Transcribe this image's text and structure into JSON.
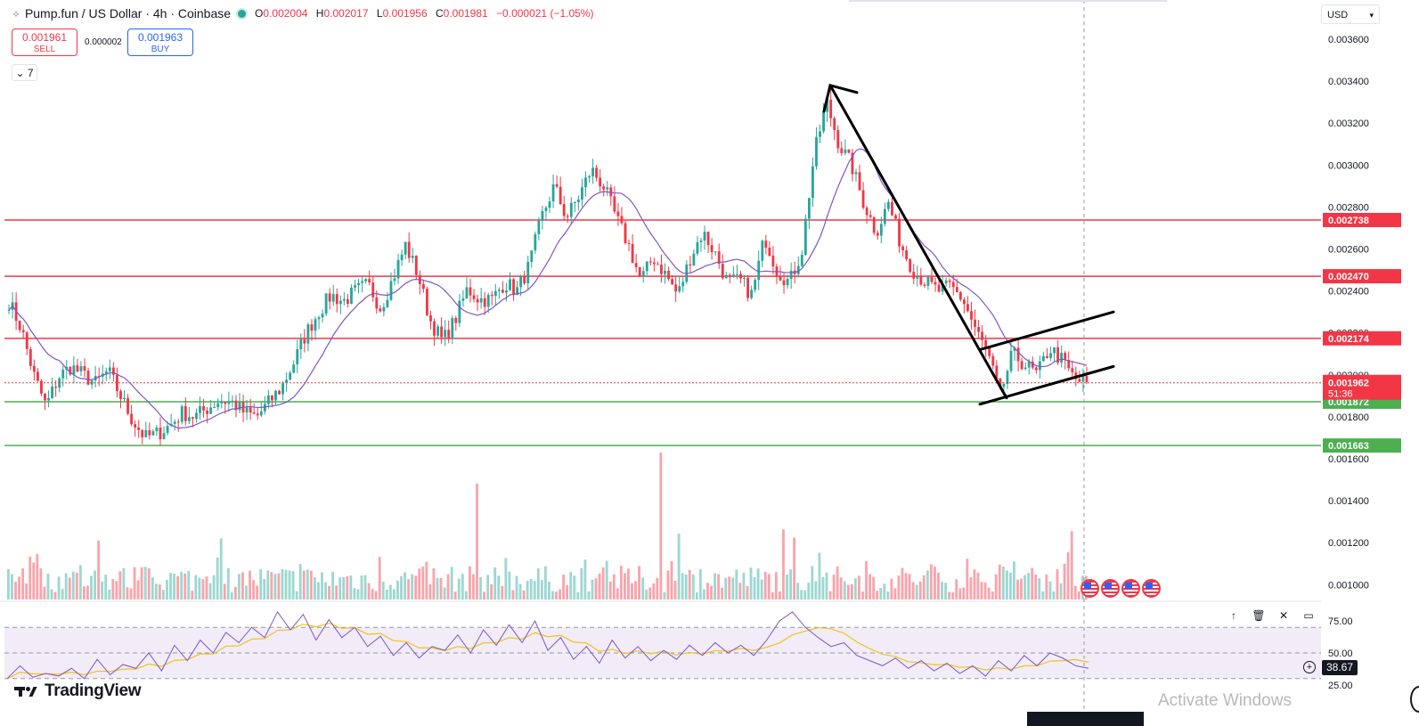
{
  "header": {
    "symbol": "Pump.fun / US Dollar · 4h · Coinbase",
    "ohlc": [
      {
        "k": "O",
        "v": "0.002004"
      },
      {
        "k": "H",
        "v": "0.002017"
      },
      {
        "k": "L",
        "v": "0.001956"
      },
      {
        "k": "C",
        "v": "0.001981"
      }
    ],
    "change": "−0.000021 (−1.05%)"
  },
  "trade": {
    "sell_price": "0.001961",
    "sell_label": "SELL",
    "spread": "0.000002",
    "buy_price": "0.001963",
    "buy_label": "BUY"
  },
  "indicator_count": "7",
  "currency": "USD",
  "rsi_value": "38.67",
  "logo_text": "TradingView",
  "watermark": "Activate Windows",
  "colors": {
    "up": "#26a69a",
    "down": "#f23645",
    "ma": "#7e57c2",
    "rsi": "#7e57c2",
    "rsi_ma": "#f0c419",
    "resistance": "#f23645",
    "support": "#4caf50"
  },
  "chart_data": {
    "type": "candlestick",
    "price_axis": {
      "ticks": [
        "0.003600",
        "0.003400",
        "0.003200",
        "0.003000",
        "0.002800",
        "0.002600",
        "0.002400",
        "0.002200",
        "0.002000",
        "0.001800",
        "0.001600",
        "0.001400",
        "0.001200",
        "0.001000"
      ],
      "range": [
        0.00088,
        0.00366
      ]
    },
    "levels": [
      {
        "value": 0.002738,
        "label": "0.002738",
        "kind": "resistance"
      },
      {
        "value": 0.00247,
        "label": "0.002470",
        "kind": "resistance"
      },
      {
        "value": 0.002174,
        "label": "0.002174",
        "kind": "resistance"
      },
      {
        "value": 0.001872,
        "label": "0.001872",
        "kind": "support"
      },
      {
        "value": 0.001663,
        "label": "0.001663",
        "kind": "support"
      }
    ],
    "last_price": {
      "value": 0.001962,
      "label": "0.001962",
      "countdown": "51:36"
    },
    "trend_lines": [
      {
        "from": [
          0.00338,
          0.00338
        ],
        "to": [
          0.00189,
          0.00189
        ]
      },
      {
        "from": [
          0.00186,
          0.00186
        ],
        "to": [
          0.00204,
          0.00204
        ]
      },
      {
        "from": [
          0.00212,
          0.00212
        ],
        "to": [
          0.0023,
          0.0023
        ]
      }
    ],
    "swing_path": [
      0.00235,
      0.00222,
      0.002,
      0.00185,
      0.00199,
      0.00204,
      0.002,
      0.00196,
      0.00202,
      0.0019,
      0.00178,
      0.0017,
      0.00172,
      0.00176,
      0.00182,
      0.0018,
      0.00184,
      0.00188,
      0.00187,
      0.00182,
      0.0018,
      0.00187,
      0.00194,
      0.00206,
      0.0022,
      0.0023,
      0.00238,
      0.00235,
      0.0024,
      0.00243,
      0.00232,
      0.00246,
      0.00262,
      0.00248,
      0.00226,
      0.00216,
      0.00226,
      0.00241,
      0.00236,
      0.00236,
      0.00244,
      0.0024,
      0.00252,
      0.00275,
      0.0029,
      0.00275,
      0.00285,
      0.00298,
      0.0029,
      0.00275,
      0.00262,
      0.00245,
      0.00256,
      0.00248,
      0.00238,
      0.00256,
      0.00268,
      0.00258,
      0.00244,
      0.00245,
      0.00238,
      0.00266,
      0.0025,
      0.00244,
      0.00259,
      0.00305,
      0.0033,
      0.0031,
      0.003,
      0.00282,
      0.00268,
      0.00282,
      0.00262,
      0.0025,
      0.00244,
      0.0024,
      0.00242,
      0.00236,
      0.00222,
      0.0021,
      0.0019,
      0.0021,
      0.00205,
      0.002,
      0.00213,
      0.00207,
      0.00198,
      0.00196
    ],
    "rsi_axis": {
      "ticks": [
        "75.00",
        "50.00",
        "25.00"
      ],
      "band": [
        30,
        70
      ]
    },
    "rsi_path": [
      30,
      40,
      31,
      34,
      32,
      38,
      30,
      45,
      33,
      41,
      38,
      50,
      36,
      56,
      44,
      60,
      50,
      66,
      58,
      70,
      62,
      82,
      68,
      80,
      60,
      76,
      62,
      70,
      55,
      63,
      48,
      58,
      46,
      55,
      52,
      64,
      50,
      68,
      56,
      72,
      58,
      75,
      52,
      62,
      45,
      55,
      42,
      60,
      46,
      55,
      44,
      52,
      45,
      56,
      48,
      58,
      50,
      56,
      48,
      60,
      75,
      82,
      70,
      62,
      55,
      58,
      48,
      44,
      40,
      46,
      38,
      44,
      36,
      42,
      34,
      40,
      32,
      44,
      36,
      48,
      40,
      50,
      46,
      40,
      38
    ]
  }
}
